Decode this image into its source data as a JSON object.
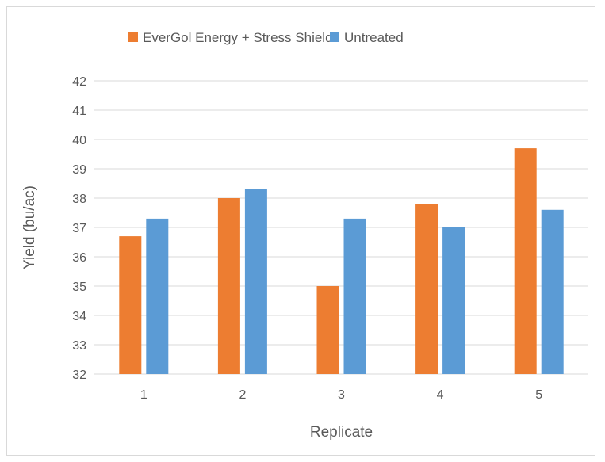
{
  "chart_data": {
    "type": "bar",
    "title": "",
    "xlabel": "Replicate",
    "ylabel": "Yield (bu/ac)",
    "categories": [
      "1",
      "2",
      "3",
      "4",
      "5"
    ],
    "series": [
      {
        "name": "EverGol Energy + Stress Shield",
        "color": "#ed7d31",
        "values": [
          36.7,
          38.0,
          35.0,
          37.8,
          39.7
        ]
      },
      {
        "name": "Untreated",
        "color": "#5b9bd5",
        "values": [
          37.3,
          38.3,
          37.3,
          37.0,
          37.6
        ]
      }
    ],
    "ylim": [
      32,
      42
    ],
    "yticks": [
      "32",
      "33",
      "34",
      "35",
      "36",
      "37",
      "38",
      "39",
      "40",
      "41",
      "42"
    ],
    "grid": true,
    "legend_position": "top"
  }
}
